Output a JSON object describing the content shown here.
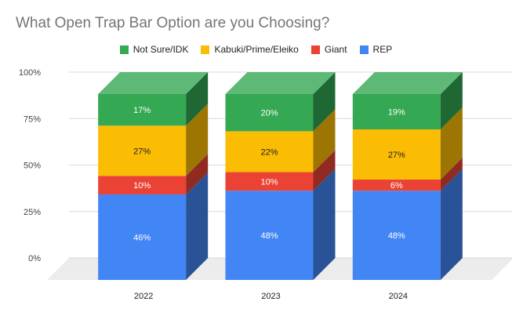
{
  "chart_data": {
    "type": "bar",
    "stacked": true,
    "style": "3d-column",
    "title": "What Open Trap Bar Option are you Choosing?",
    "xlabel": "",
    "ylabel": "",
    "categories": [
      "2022",
      "2023",
      "2024"
    ],
    "y_ticks": [
      "100%",
      "75%",
      "50%",
      "25%",
      "0%"
    ],
    "ylim": [
      0,
      100
    ],
    "legend_position": "top",
    "grid": true,
    "series": [
      {
        "name": "REP",
        "color": "#4285f4",
        "values": [
          46,
          48,
          48
        ],
        "labels": [
          "46%",
          "48%",
          "48%"
        ]
      },
      {
        "name": "Giant",
        "color": "#ea4335",
        "values": [
          10,
          10,
          6
        ],
        "labels": [
          "10%",
          "10%",
          "6%"
        ]
      },
      {
        "name": "Kabuki/Prime/Eleiko",
        "color": "#fbbc04",
        "values": [
          27,
          22,
          27
        ],
        "labels": [
          "27%",
          "22%",
          "27%"
        ]
      },
      {
        "name": "Not Sure/IDK",
        "color": "#34a853",
        "values": [
          17,
          20,
          19
        ],
        "labels": [
          "17%",
          "20%",
          "19%"
        ]
      }
    ],
    "legend_order": [
      "Not Sure/IDK",
      "Kabuki/Prime/Eleiko",
      "Giant",
      "REP"
    ]
  }
}
